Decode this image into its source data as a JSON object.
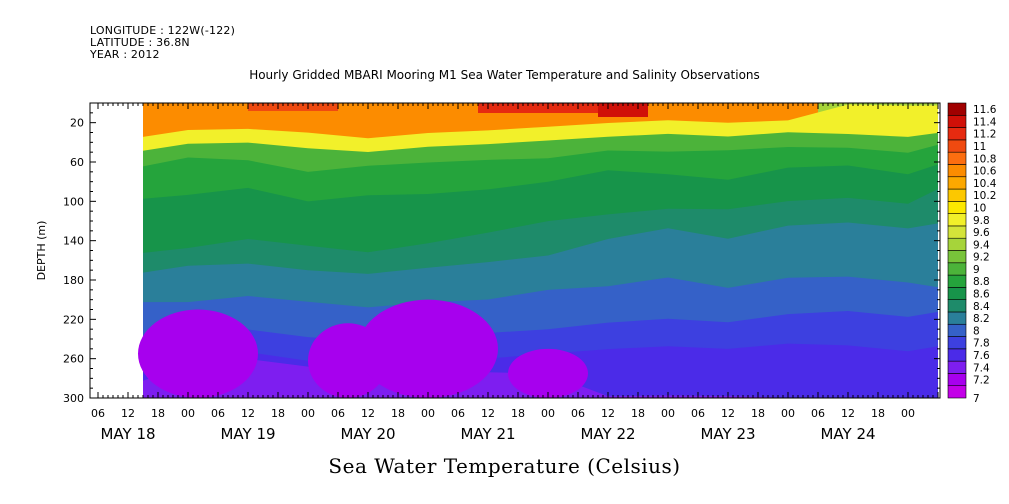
{
  "header": {
    "longitude": "LONGITUDE : 122W(-122)",
    "latitude": "LATITUDE : 36.8N",
    "year": "YEAR : 2012"
  },
  "chart_data": {
    "type": "heatmap",
    "title": "Hourly Gridded MBARI Mooring M1 Sea Water Temperature and Salinity Observations",
    "xlabel": "Sea Water Temperature (Celsius)",
    "ylabel": "DEPTH (m)",
    "x_domain_hours": [
      0,
      168
    ],
    "data_start_hour": 9,
    "y_range_depth_m": [
      300,
      0
    ],
    "y_ticks": [
      20,
      60,
      100,
      140,
      180,
      220,
      260,
      300
    ],
    "hour_ticks": [
      {
        "h": 0,
        "label": "06"
      },
      {
        "h": 6,
        "label": "12"
      },
      {
        "h": 12,
        "label": "18"
      },
      {
        "h": 18,
        "label": "00"
      },
      {
        "h": 24,
        "label": "06"
      },
      {
        "h": 30,
        "label": "12"
      },
      {
        "h": 36,
        "label": "18"
      },
      {
        "h": 42,
        "label": "00"
      },
      {
        "h": 48,
        "label": "06"
      },
      {
        "h": 54,
        "label": "12"
      },
      {
        "h": 60,
        "label": "18"
      },
      {
        "h": 66,
        "label": "00"
      },
      {
        "h": 72,
        "label": "06"
      },
      {
        "h": 78,
        "label": "12"
      },
      {
        "h": 84,
        "label": "18"
      },
      {
        "h": 90,
        "label": "00"
      },
      {
        "h": 96,
        "label": "06"
      },
      {
        "h": 102,
        "label": "12"
      },
      {
        "h": 108,
        "label": "18"
      },
      {
        "h": 114,
        "label": "00"
      },
      {
        "h": 120,
        "label": "06"
      },
      {
        "h": 126,
        "label": "12"
      },
      {
        "h": 132,
        "label": "18"
      },
      {
        "h": 138,
        "label": "00"
      },
      {
        "h": 144,
        "label": "06"
      },
      {
        "h": 150,
        "label": "12"
      },
      {
        "h": 156,
        "label": "18"
      },
      {
        "h": 162,
        "label": "00"
      }
    ],
    "date_ticks": [
      {
        "h": 6,
        "label": "MAY 18"
      },
      {
        "h": 30,
        "label": "MAY 19"
      },
      {
        "h": 54,
        "label": "MAY 20"
      },
      {
        "h": 78,
        "label": "MAY 21"
      },
      {
        "h": 102,
        "label": "MAY 22"
      },
      {
        "h": 126,
        "label": "MAY 23"
      },
      {
        "h": 150,
        "label": "MAY 24"
      }
    ],
    "levels": [
      {
        "v": "7",
        "c": "#c300e8"
      },
      {
        "v": "7.2",
        "c": "#a700ee"
      },
      {
        "v": "7.4",
        "c": "#7e1ef0"
      },
      {
        "v": "7.6",
        "c": "#4b2be8"
      },
      {
        "v": "7.8",
        "c": "#3d40e0"
      },
      {
        "v": "8",
        "c": "#3561c8"
      },
      {
        "v": "8.2",
        "c": "#2a7f9a"
      },
      {
        "v": "8.4",
        "c": "#1e8b6a"
      },
      {
        "v": "8.6",
        "c": "#17944a"
      },
      {
        "v": "8.8",
        "c": "#25a43c"
      },
      {
        "v": "9",
        "c": "#4cb33a"
      },
      {
        "v": "9.2",
        "c": "#78c43a"
      },
      {
        "v": "9.4",
        "c": "#a6d43a"
      },
      {
        "v": "9.6",
        "c": "#d4e43a"
      },
      {
        "v": "9.8",
        "c": "#f2f02a"
      },
      {
        "v": "10",
        "c": "#fce800"
      },
      {
        "v": "10.2",
        "c": "#fcc800"
      },
      {
        "v": "10.4",
        "c": "#fca800"
      },
      {
        "v": "10.6",
        "c": "#fc8c00"
      },
      {
        "v": "10.8",
        "c": "#fc6e10"
      },
      {
        "v": "11",
        "c": "#f04a10"
      },
      {
        "v": "11.2",
        "c": "#e62a10"
      },
      {
        "v": "11.4",
        "c": "#d01008"
      },
      {
        "v": "11.6",
        "c": "#a00000"
      }
    ],
    "isotherm_depths": {
      "hours": [
        9,
        18,
        30,
        42,
        54,
        66,
        78,
        90,
        102,
        114,
        126,
        138,
        150,
        162,
        168
      ],
      "t10_0": [
        32,
        30,
        28,
        30,
        34,
        28,
        26,
        24,
        22,
        20,
        22,
        18,
        0,
        0,
        0
      ],
      "t9_0": [
        46,
        44,
        42,
        46,
        48,
        42,
        40,
        38,
        36,
        34,
        36,
        30,
        30,
        32,
        28
      ],
      "t8_8": [
        62,
        58,
        60,
        70,
        62,
        58,
        56,
        56,
        50,
        52,
        50,
        45,
        44,
        48,
        40
      ],
      "t8_6": [
        95,
        96,
        88,
        100,
        92,
        90,
        86,
        80,
        70,
        75,
        80,
        66,
        62,
        70,
        60
      ],
      "t8_4": [
        150,
        150,
        140,
        145,
        150,
        140,
        130,
        120,
        115,
        110,
        110,
        100,
        95,
        100,
        85
      ],
      "t8_2": [
        170,
        168,
        165,
        170,
        172,
        165,
        160,
        155,
        140,
        130,
        140,
        125,
        120,
        125,
        120
      ],
      "t8_0": [
        200,
        205,
        198,
        202,
        206,
        200,
        198,
        190,
        188,
        180,
        190,
        178,
        175,
        180,
        185
      ],
      "t7_8": [
        240,
        235,
        232,
        238,
        240,
        238,
        232,
        230,
        225,
        222,
        225,
        215,
        210,
        215,
        210
      ],
      "t7_6": [
        260,
        258,
        255,
        262,
        262,
        258,
        258,
        255,
        252,
        250,
        252,
        245,
        245,
        250,
        245
      ],
      "t7_4": [
        280,
        268,
        262,
        268,
        270,
        262,
        272,
        275,
        300,
        300,
        300,
        300,
        300,
        300,
        300
      ]
    }
  }
}
